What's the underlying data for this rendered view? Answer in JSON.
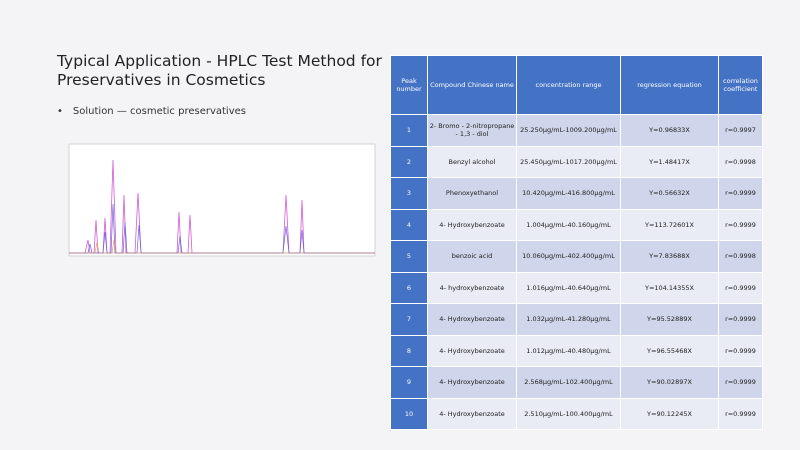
{
  "header": {
    "title": "Typical Application - HPLC Test Method for Preservatives in Cosmetics"
  },
  "bullet": "Solution — cosmetic preservatives",
  "table": {
    "columns": [
      "Peak number",
      "Compound Chinese name",
      "concentration range",
      "regression equation",
      "correlation coefficient"
    ],
    "rows": [
      [
        "1",
        "2- Bromo - 2-nitropropane - 1,3 - diol",
        "25.250μg/mL-1009.200μg/mL",
        "Y=0.96833X",
        "r=0.9997"
      ],
      [
        "2",
        "Benzyl alcohol",
        "25.450μg/mL-1017.200μg/mL",
        "Y=1.48417X",
        "r=0.9998"
      ],
      [
        "3",
        "Phenoxyethanol",
        "10.420μg/mL-416.800μg/mL",
        "Y=0.56632X",
        "r=0.9999"
      ],
      [
        "4",
        "4- Hydroxybenzoate",
        "1.004μg/mL-40.160μg/mL",
        "Y=113.72601X",
        "r=0.9999"
      ],
      [
        "5",
        "benzoic acid",
        "10.060μg/mL-402.400μg/mL",
        "Y=7.83688X",
        "r=0.9998"
      ],
      [
        "6",
        "4- hydroxybenzoate",
        "1.016μg/mL-40.640μg/mL",
        "Y=104.14355X",
        "r=0.9999"
      ],
      [
        "7",
        "4- Hydroxybenzoate",
        "1.032μg/mL-41.280μg/mL",
        "Y=95.52889X",
        "r=0.9999"
      ],
      [
        "8",
        "4- Hydroxybenzoate",
        "1.012μg/mL-40.480μg/mL",
        "Y=96.55468X",
        "r=0.9999"
      ],
      [
        "9",
        "4- Hydroxybenzoate",
        "2.568μg/mL-102.400μg/mL",
        "Y=90.02897X",
        "r=0.9999"
      ],
      [
        "10",
        "4- Hydroxybenzoate",
        "2.510μg/mL-100.400μg/mL",
        "Y=90.12245X",
        "r=0.9999"
      ]
    ]
  }
}
